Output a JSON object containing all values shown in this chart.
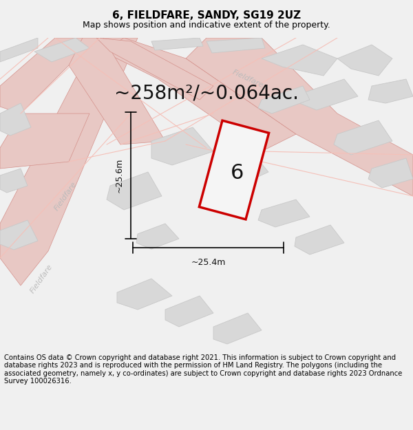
{
  "title": "6, FIELDFARE, SANDY, SG19 2UZ",
  "subtitle": "Map shows position and indicative extent of the property.",
  "area_label": "~258m²/~0.064ac.",
  "plot_number": "6",
  "dim_width": "~25.4m",
  "dim_height": "~25.6m",
  "footer": "Contains OS data © Crown copyright and database right 2021. This information is subject to Crown copyright and database rights 2023 and is reproduced with the permission of HM Land Registry. The polygons (including the associated geometry, namely x, y co-ordinates) are subject to Crown copyright and database rights 2023 Ordnance Survey 100026316.",
  "bg_color": "#e8e8e8",
  "map_bg": "#f0f0f0",
  "road_color_light": "#f5c0b8",
  "road_color_dark": "#e8a09a",
  "building_color": "#d8d8d8",
  "building_edge": "#c0c0c0",
  "plot_fill": "#f8f8f8",
  "plot_edge": "#cc0000",
  "plot_edge_width": 2.5,
  "dim_color": "#222222",
  "street_label_color": "#aaaaaa",
  "title_fontsize": 11,
  "subtitle_fontsize": 9,
  "area_fontsize": 20,
  "plot_num_fontsize": 22,
  "footer_fontsize": 7.2,
  "map_xlim": [
    0,
    1
  ],
  "map_ylim": [
    0,
    1
  ]
}
